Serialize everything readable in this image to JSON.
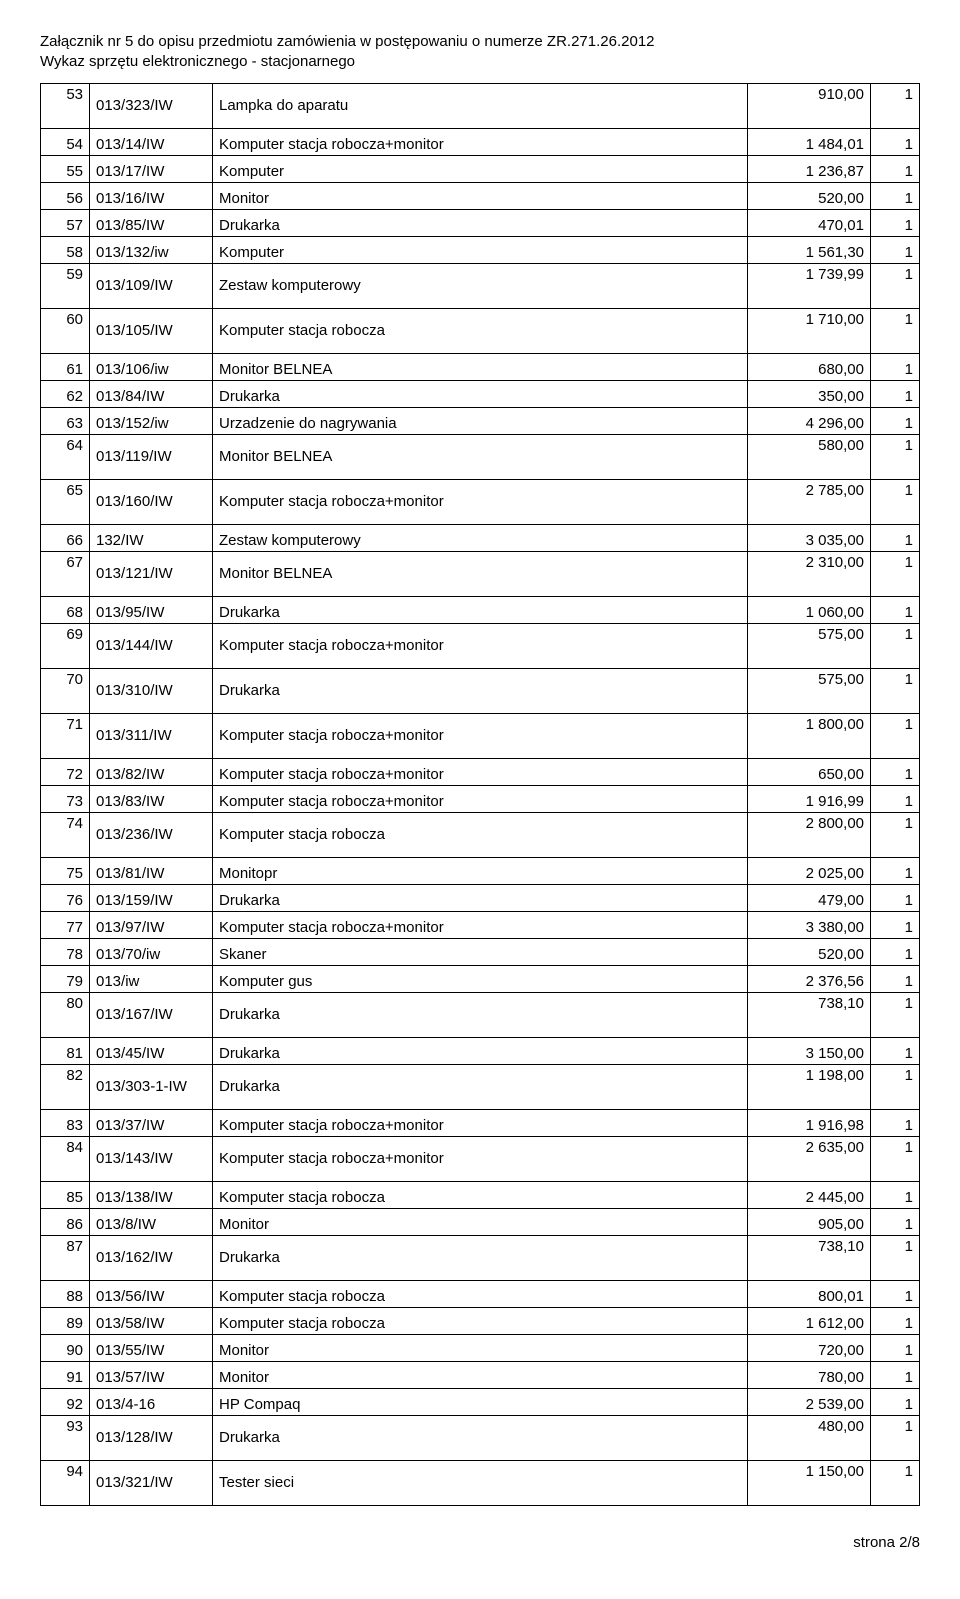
{
  "header": {
    "line1": "Załącznik nr 5 do opisu przedmiotu zamówienia w postępowaniu o numerze ZR.271.26.2012",
    "line2": "Wykaz sprzętu elektronicznego - stacjonarnego"
  },
  "columns": [
    "lp",
    "code",
    "name",
    "value",
    "qty"
  ],
  "rows": [
    {
      "lp": "53",
      "code": "013/323/IW",
      "name": "Lampka do aparatu",
      "value": "910,00",
      "qty": "1",
      "tall": true
    },
    {
      "lp": "54",
      "code": "013/14/IW",
      "name": "Komputer stacja robocza+monitor",
      "value": "1 484,01",
      "qty": "1"
    },
    {
      "lp": "55",
      "code": "013/17/IW",
      "name": "Komputer",
      "value": "1 236,87",
      "qty": "1"
    },
    {
      "lp": "56",
      "code": "013/16/IW",
      "name": "Monitor",
      "value": "520,00",
      "qty": "1"
    },
    {
      "lp": "57",
      "code": "013/85/IW",
      "name": "Drukarka",
      "value": "470,01",
      "qty": "1"
    },
    {
      "lp": "58",
      "code": "013/132/iw",
      "name": "Komputer",
      "value": "1 561,30",
      "qty": "1"
    },
    {
      "lp": "59",
      "code": "013/109/IW",
      "name": "Zestaw komputerowy",
      "value": "1 739,99",
      "qty": "1",
      "tall": true
    },
    {
      "lp": "60",
      "code": "013/105/IW",
      "name": "Komputer stacja robocza",
      "value": "1 710,00",
      "qty": "1",
      "tall": true
    },
    {
      "lp": "61",
      "code": "013/106/iw",
      "name": "Monitor BELNEA",
      "value": "680,00",
      "qty": "1"
    },
    {
      "lp": "62",
      "code": "013/84/IW",
      "name": "Drukarka",
      "value": "350,00",
      "qty": "1"
    },
    {
      "lp": "63",
      "code": "013/152/iw",
      "name": "Urzadzenie do nagrywania",
      "value": "4 296,00",
      "qty": "1"
    },
    {
      "lp": "64",
      "code": "013/119/IW",
      "name": "Monitor BELNEA",
      "value": "580,00",
      "qty": "1",
      "tall": true
    },
    {
      "lp": "65",
      "code": "013/160/IW",
      "name": "Komputer stacja robocza+monitor",
      "value": "2 785,00",
      "qty": "1",
      "tall": true
    },
    {
      "lp": "66",
      "code": "132/IW",
      "name": "Zestaw komputerowy",
      "value": "3 035,00",
      "qty": "1"
    },
    {
      "lp": "67",
      "code": "013/121/IW",
      "name": "Monitor BELNEA",
      "value": "2 310,00",
      "qty": "1",
      "tall": true
    },
    {
      "lp": "68",
      "code": "013/95/IW",
      "name": "Drukarka",
      "value": "1 060,00",
      "qty": "1"
    },
    {
      "lp": "69",
      "code": "013/144/IW",
      "name": "Komputer stacja robocza+monitor",
      "value": "575,00",
      "qty": "1",
      "tall": true
    },
    {
      "lp": "70",
      "code": "013/310/IW",
      "name": "Drukarka",
      "value": "575,00",
      "qty": "1",
      "tall": true
    },
    {
      "lp": "71",
      "code": "013/311/IW",
      "name": "Komputer stacja robocza+monitor",
      "value": "1 800,00",
      "qty": "1",
      "tall": true
    },
    {
      "lp": "72",
      "code": "013/82/IW",
      "name": "Komputer stacja robocza+monitor",
      "value": "650,00",
      "qty": "1"
    },
    {
      "lp": "73",
      "code": "013/83/IW",
      "name": "Komputer stacja robocza+monitor",
      "value": "1 916,99",
      "qty": "1"
    },
    {
      "lp": "74",
      "code": "013/236/IW",
      "name": "Komputer stacja robocza",
      "value": "2 800,00",
      "qty": "1",
      "tall": true
    },
    {
      "lp": "75",
      "code": "013/81/IW",
      "name": "Monitopr",
      "value": "2 025,00",
      "qty": "1"
    },
    {
      "lp": "76",
      "code": "013/159/IW",
      "name": "Drukarka",
      "value": "479,00",
      "qty": "1"
    },
    {
      "lp": "77",
      "code": "013/97/IW",
      "name": "Komputer stacja robocza+monitor",
      "value": "3 380,00",
      "qty": "1"
    },
    {
      "lp": "78",
      "code": "013/70/iw",
      "name": "Skaner",
      "value": "520,00",
      "qty": "1"
    },
    {
      "lp": "79",
      "code": "013/iw",
      "name": "Komputer gus",
      "value": "2 376,56",
      "qty": "1"
    },
    {
      "lp": "80",
      "code": "013/167/IW",
      "name": "Drukarka",
      "value": "738,10",
      "qty": "1",
      "tall": true
    },
    {
      "lp": "81",
      "code": "013/45/IW",
      "name": "Drukarka",
      "value": "3 150,00",
      "qty": "1"
    },
    {
      "lp": "82",
      "code": "013/303-1-IW",
      "name": "Drukarka",
      "value": "1 198,00",
      "qty": "1",
      "tall": true
    },
    {
      "lp": "83",
      "code": "013/37/IW",
      "name": "Komputer stacja robocza+monitor",
      "value": "1 916,98",
      "qty": "1"
    },
    {
      "lp": "84",
      "code": "013/143/IW",
      "name": "Komputer stacja robocza+monitor",
      "value": "2 635,00",
      "qty": "1",
      "tall": true
    },
    {
      "lp": "85",
      "code": "013/138/IW",
      "name": "Komputer stacja robocza",
      "value": "2 445,00",
      "qty": "1"
    },
    {
      "lp": "86",
      "code": "013/8/IW",
      "name": "Monitor",
      "value": "905,00",
      "qty": "1"
    },
    {
      "lp": "87",
      "code": "013/162/IW",
      "name": "Drukarka",
      "value": "738,10",
      "qty": "1",
      "tall": true
    },
    {
      "lp": "88",
      "code": "013/56/IW",
      "name": "Komputer stacja robocza",
      "value": "800,01",
      "qty": "1"
    },
    {
      "lp": "89",
      "code": "013/58/IW",
      "name": "Komputer stacja robocza",
      "value": "1 612,00",
      "qty": "1"
    },
    {
      "lp": "90",
      "code": "013/55/IW",
      "name": "Monitor",
      "value": "720,00",
      "qty": "1"
    },
    {
      "lp": "91",
      "code": "013/57/IW",
      "name": "Monitor",
      "value": "780,00",
      "qty": "1"
    },
    {
      "lp": "92",
      "code": "013/4-16",
      "name": "HP Compaq",
      "value": "2 539,00",
      "qty": "1"
    },
    {
      "lp": "93",
      "code": "013/128/IW",
      "name": "Drukarka",
      "value": "480,00",
      "qty": "1",
      "tall": true
    },
    {
      "lp": "94",
      "code": "013/321/IW",
      "name": "Tester sieci",
      "value": "1 150,00",
      "qty": "1",
      "tall": true
    }
  ],
  "footer": "strona 2/8"
}
